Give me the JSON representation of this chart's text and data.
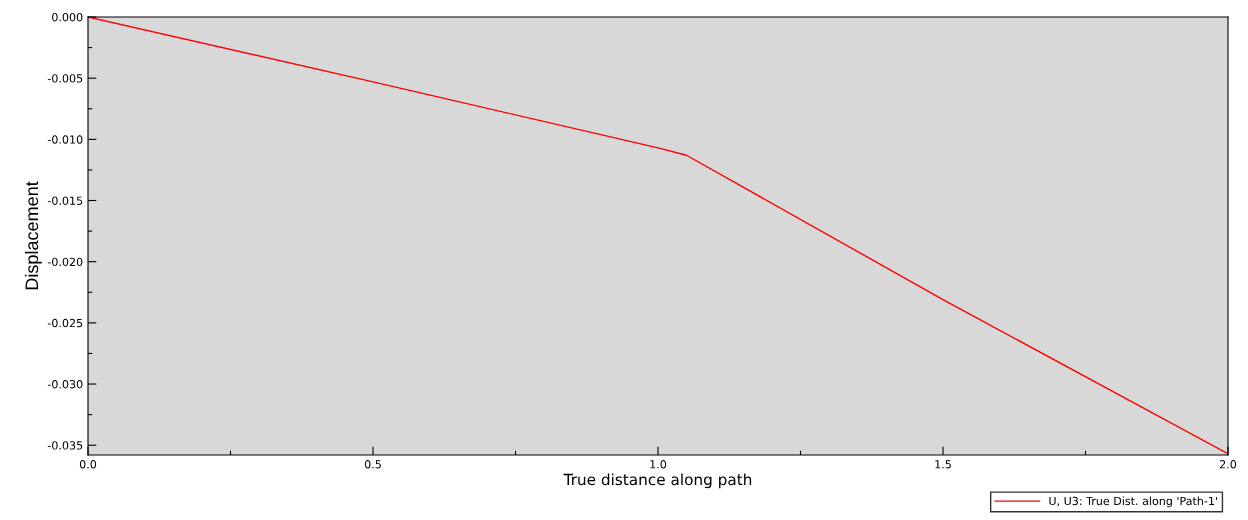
{
  "chart_data": {
    "type": "line",
    "xlabel": "True distance along path",
    "ylabel": "Displacement",
    "x": [
      0.0,
      0.5,
      1.0,
      1.05,
      1.5,
      2.0
    ],
    "series": [
      {
        "name": "U, U3: True Dist. along 'Path-1'",
        "color": "#ff0000",
        "values": [
          0.0,
          -0.0053,
          -0.0107,
          -0.0113,
          -0.0231,
          -0.0357
        ]
      }
    ],
    "xlim": [
      0.0,
      2.0
    ],
    "ylim": [
      -0.0358,
      0.0
    ],
    "xticks": [
      {
        "value": 0.0,
        "label": "0.0"
      },
      {
        "value": 0.25,
        "label": null
      },
      {
        "value": 0.5,
        "label": "0.5"
      },
      {
        "value": 0.75,
        "label": null
      },
      {
        "value": 1.0,
        "label": "1.0"
      },
      {
        "value": 1.25,
        "label": null
      },
      {
        "value": 1.5,
        "label": "1.5"
      },
      {
        "value": 1.75,
        "label": null
      },
      {
        "value": 2.0,
        "label": "2.0"
      }
    ],
    "yticks": [
      {
        "value": 0.0,
        "label": "0.000"
      },
      {
        "value": -0.0025,
        "label": null
      },
      {
        "value": -0.005,
        "label": "-0.005"
      },
      {
        "value": -0.0075,
        "label": null
      },
      {
        "value": -0.01,
        "label": "-0.010"
      },
      {
        "value": -0.0125,
        "label": null
      },
      {
        "value": -0.015,
        "label": "-0.015"
      },
      {
        "value": -0.0175,
        "label": null
      },
      {
        "value": -0.02,
        "label": "-0.020"
      },
      {
        "value": -0.0225,
        "label": null
      },
      {
        "value": -0.025,
        "label": "-0.025"
      },
      {
        "value": -0.0275,
        "label": null
      },
      {
        "value": -0.03,
        "label": "-0.030"
      },
      {
        "value": -0.0325,
        "label": null
      },
      {
        "value": -0.035,
        "label": "-0.035"
      }
    ],
    "grid": false,
    "legend": "bottom right",
    "marker": "none",
    "line_style": "solid"
  }
}
